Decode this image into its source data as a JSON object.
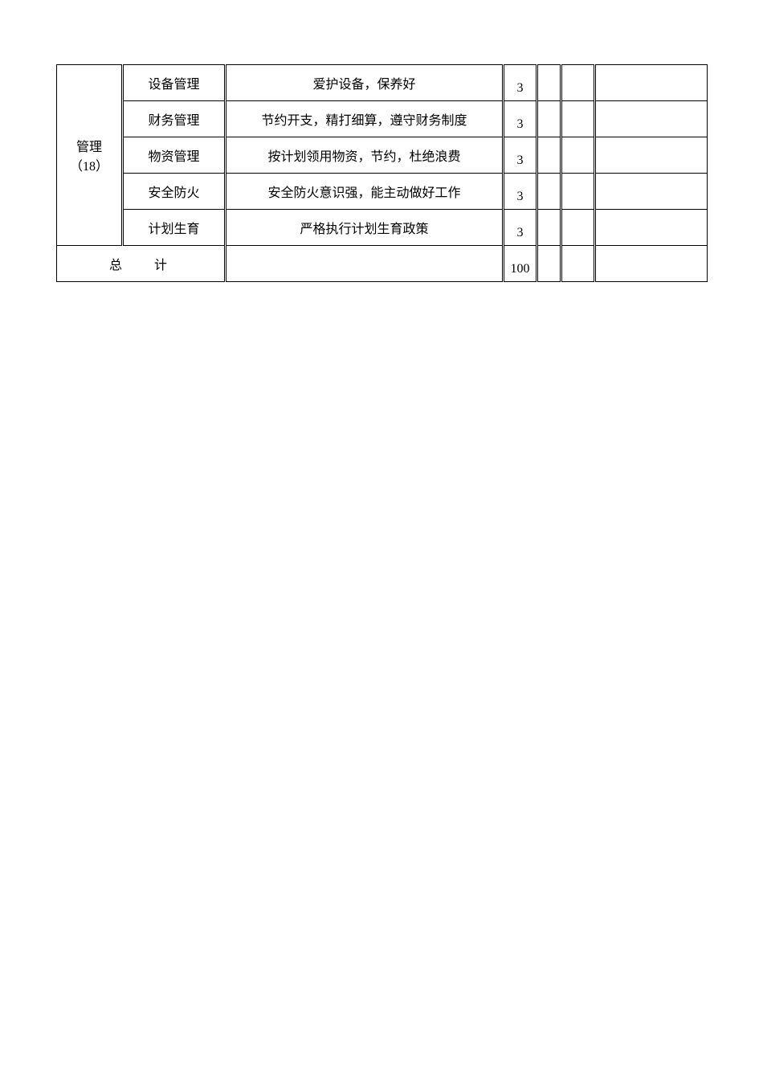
{
  "category": {
    "label_line1": "管理",
    "label_line2": "（18）"
  },
  "rows": [
    {
      "item": "设备管理",
      "desc": "爱护设备，保养好",
      "score": "3"
    },
    {
      "item": "财务管理",
      "desc": "节约开支，精打细算，遵守财务制度",
      "score": "3"
    },
    {
      "item": "物资管理",
      "desc": "按计划领用物资，节约，杜绝浪费",
      "score": "3"
    },
    {
      "item": "安全防火",
      "desc": "安全防火意识强，能主动做好工作",
      "score": "3"
    },
    {
      "item": "计划生育",
      "desc": "严格执行计划生育政策",
      "score": "3"
    }
  ],
  "total": {
    "label": "总计",
    "score": "100"
  },
  "colors": {
    "border": "#000000",
    "text": "#000000",
    "background": "#ffffff"
  },
  "font": {
    "family": "SimSun",
    "size_pt": 12
  }
}
